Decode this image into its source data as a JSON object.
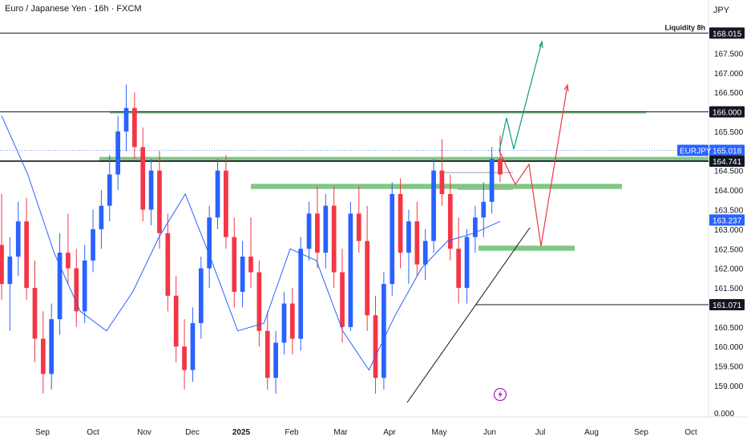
{
  "header": {
    "title": "Euro / Japanese Yen · 16h · FXCM",
    "currency": "JPY"
  },
  "colors": {
    "up": "#2962ff",
    "down": "#f23645",
    "ma": "#2962ff",
    "zone": "#4caf50",
    "green_path": "#089981",
    "red_path": "#f23645",
    "level": "#131722",
    "badge_blue": "#2962ff",
    "badge_dark": "#131722",
    "bolt": "#9c27b0"
  },
  "chart_data": {
    "type": "candlestick",
    "symbol": "EURJPY",
    "y_axis": {
      "ticks": [
        "167.500",
        "167.000",
        "166.500",
        "165.500",
        "165.000",
        "164.500",
        "164.000",
        "163.500",
        "163.000",
        "162.500",
        "162.000",
        "161.500",
        "160.500",
        "160.000",
        "159.500",
        "159.000"
      ],
      "ylim": [
        158.7,
        168.5
      ],
      "bottom_label": "0.000"
    },
    "x_axis": {
      "ticks": [
        "Sep",
        "Oct",
        "Nov",
        "Dec",
        "2025",
        "Feb",
        "Mar",
        "Apr",
        "May",
        "Jun",
        "Jul",
        "Aug",
        "Sep",
        "Oct"
      ]
    },
    "price_labels": {
      "liquidity_text": "Liquidity 8h",
      "liquidity": "168.015",
      "round": "166.000",
      "current_name": "EURJPY",
      "current": "165.018",
      "resistance": "164.741",
      "ma_value": "163.237",
      "support": "161.071"
    },
    "levels": [
      {
        "name": "liquidity",
        "value": 168.015
      },
      {
        "name": "round",
        "value": 166.0
      },
      {
        "name": "resistance",
        "value": 164.741
      },
      {
        "name": "support",
        "value": 161.071
      }
    ],
    "zones": [
      {
        "name": "zone-166",
        "from": 166.02,
        "to": 165.96
      },
      {
        "name": "zone-1648",
        "from": 164.85,
        "to": 164.72
      },
      {
        "name": "zone-1641",
        "from": 164.16,
        "to": 164.03
      },
      {
        "name": "zone-1625",
        "from": 162.58,
        "to": 162.45
      }
    ],
    "ohlc_approx": [
      [
        162.6,
        163.9,
        161.2,
        161.6
      ],
      [
        161.6,
        162.8,
        160.4,
        162.3
      ],
      [
        162.3,
        163.7,
        161.8,
        163.2
      ],
      [
        163.2,
        163.8,
        161.2,
        161.5
      ],
      [
        161.5,
        162.2,
        159.6,
        160.2
      ],
      [
        160.2,
        160.9,
        158.8,
        159.3
      ],
      [
        159.3,
        161.1,
        158.9,
        160.7
      ],
      [
        160.7,
        162.9,
        160.3,
        162.4
      ],
      [
        162.4,
        163.4,
        161.6,
        162.0
      ],
      [
        162.0,
        162.5,
        160.5,
        160.9
      ],
      [
        160.9,
        162.6,
        160.6,
        162.2
      ],
      [
        162.2,
        163.5,
        161.9,
        163.0
      ],
      [
        163.0,
        164.0,
        162.5,
        163.6
      ],
      [
        163.6,
        164.9,
        163.2,
        164.4
      ],
      [
        164.4,
        165.9,
        164.0,
        165.5
      ],
      [
        165.5,
        166.7,
        165.0,
        166.1
      ],
      [
        166.1,
        166.5,
        164.8,
        165.1
      ],
      [
        165.1,
        165.6,
        163.2,
        163.5
      ],
      [
        163.5,
        164.8,
        163.1,
        164.5
      ],
      [
        164.5,
        165.0,
        162.5,
        162.9
      ],
      [
        162.9,
        163.4,
        160.9,
        161.3
      ],
      [
        161.3,
        161.8,
        159.6,
        160.0
      ],
      [
        160.0,
        160.7,
        158.9,
        159.4
      ],
      [
        159.4,
        161.0,
        159.1,
        160.6
      ],
      [
        160.6,
        162.3,
        160.2,
        162.0
      ],
      [
        162.0,
        163.6,
        161.5,
        163.3
      ],
      [
        163.3,
        164.8,
        163.0,
        164.5
      ],
      [
        164.5,
        164.9,
        162.5,
        162.8
      ],
      [
        162.8,
        163.3,
        161.0,
        161.4
      ],
      [
        161.4,
        162.7,
        161.0,
        162.3
      ],
      [
        162.3,
        163.3,
        161.5,
        161.9
      ],
      [
        161.9,
        162.2,
        160.0,
        160.4
      ],
      [
        160.4,
        160.9,
        158.9,
        159.2
      ],
      [
        159.2,
        160.4,
        158.8,
        160.1
      ],
      [
        160.1,
        161.4,
        159.8,
        161.1
      ],
      [
        161.1,
        161.5,
        159.8,
        160.2
      ],
      [
        160.2,
        162.8,
        159.9,
        162.5
      ],
      [
        162.5,
        163.7,
        162.2,
        163.4
      ],
      [
        163.4,
        164.1,
        162.0,
        162.4
      ],
      [
        162.4,
        163.9,
        162.0,
        163.6
      ],
      [
        163.6,
        164.1,
        161.5,
        161.9
      ],
      [
        161.9,
        162.5,
        160.1,
        160.5
      ],
      [
        160.5,
        163.7,
        160.4,
        163.4
      ],
      [
        163.4,
        164.1,
        162.4,
        162.7
      ],
      [
        162.7,
        163.6,
        160.4,
        160.8
      ],
      [
        160.8,
        161.3,
        158.8,
        159.2
      ],
      [
        159.2,
        161.9,
        158.9,
        161.6
      ],
      [
        161.6,
        164.2,
        161.3,
        163.9
      ],
      [
        163.9,
        164.3,
        162.0,
        162.4
      ],
      [
        162.4,
        163.5,
        161.6,
        163.2
      ],
      [
        163.2,
        163.7,
        161.8,
        162.1
      ],
      [
        162.1,
        163.0,
        161.7,
        162.7
      ],
      [
        162.7,
        164.8,
        162.4,
        164.5
      ],
      [
        164.5,
        165.3,
        163.6,
        163.9
      ],
      [
        163.9,
        164.4,
        162.2,
        162.5
      ],
      [
        162.5,
        163.3,
        161.1,
        161.5
      ],
      [
        161.5,
        163.0,
        161.1,
        162.8
      ],
      [
        162.8,
        163.6,
        162.4,
        163.3
      ],
      [
        163.3,
        164.2,
        162.8,
        163.7
      ],
      [
        163.7,
        165.1,
        163.4,
        164.8
      ],
      [
        164.8,
        165.4,
        164.2,
        164.4
      ]
    ],
    "ma_approx": [
      165.9,
      164.4,
      162.4,
      160.9,
      160.4,
      161.4,
      162.8,
      163.9,
      162.2,
      160.4,
      160.6,
      162.5,
      162.2,
      160.4,
      159.4,
      160.8,
      162.0,
      162.7,
      162.9,
      163.2
    ]
  },
  "annotation": {
    "bolt_icon": "lightning-icon"
  }
}
